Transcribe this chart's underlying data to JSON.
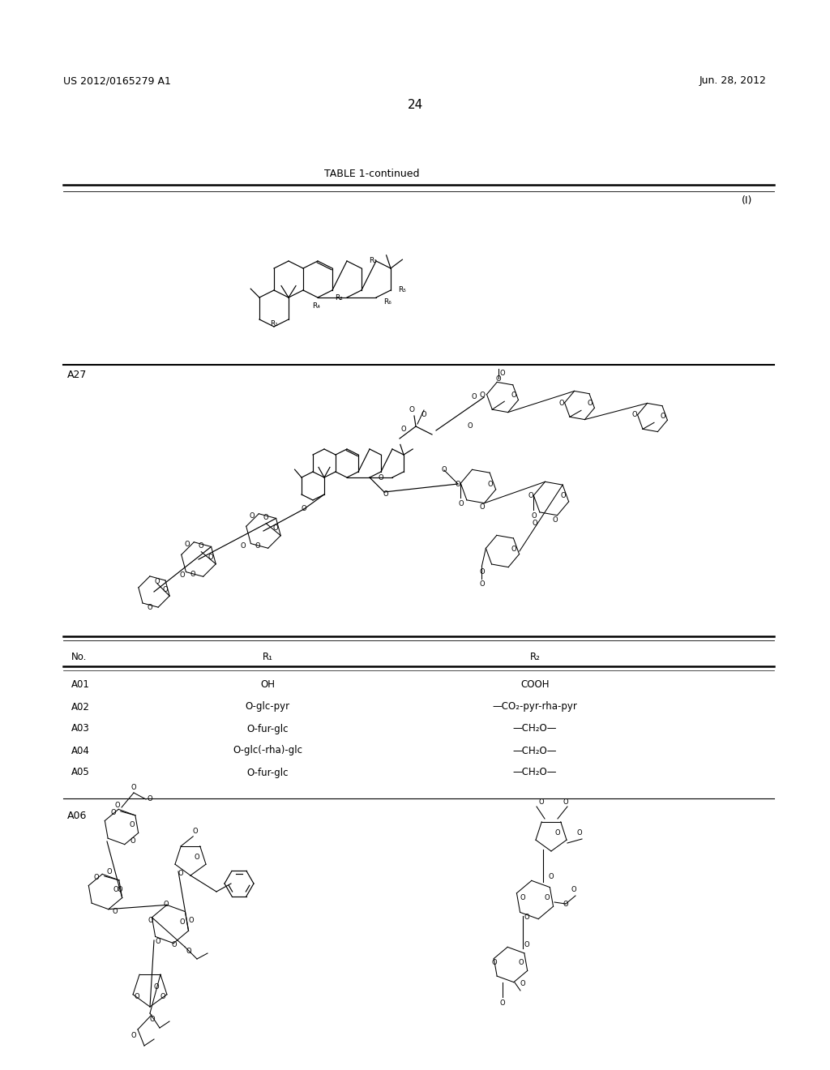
{
  "bg_color": "#ffffff",
  "page_width": 10.24,
  "page_height": 13.2,
  "header_left": "US 2012/0165279 A1",
  "header_right": "Jun. 28, 2012",
  "page_number": "24",
  "table_title": "TABLE 1-continued",
  "label_I": "(I)",
  "label_A27": "A27",
  "label_A06": "A06",
  "table_headers": [
    "No.",
    "R₁",
    "R₂"
  ],
  "table_rows": [
    [
      "A01",
      "OH",
      "COOH"
    ],
    [
      "A02",
      "O-glc-pyr",
      "—CO₂-pyr-rha-pyr"
    ],
    [
      "A03",
      "O-fur-glc",
      "—CH₂O—"
    ],
    [
      "A04",
      "O-glc(-rha)-glc",
      "—CH₂O—"
    ],
    [
      "A05",
      "O-fur-glc",
      "—CH₂O—"
    ]
  ],
  "fs_header": 9,
  "fs_table": 8.5,
  "fs_label": 9,
  "fs_page": 11,
  "fs_struct": 6.5
}
